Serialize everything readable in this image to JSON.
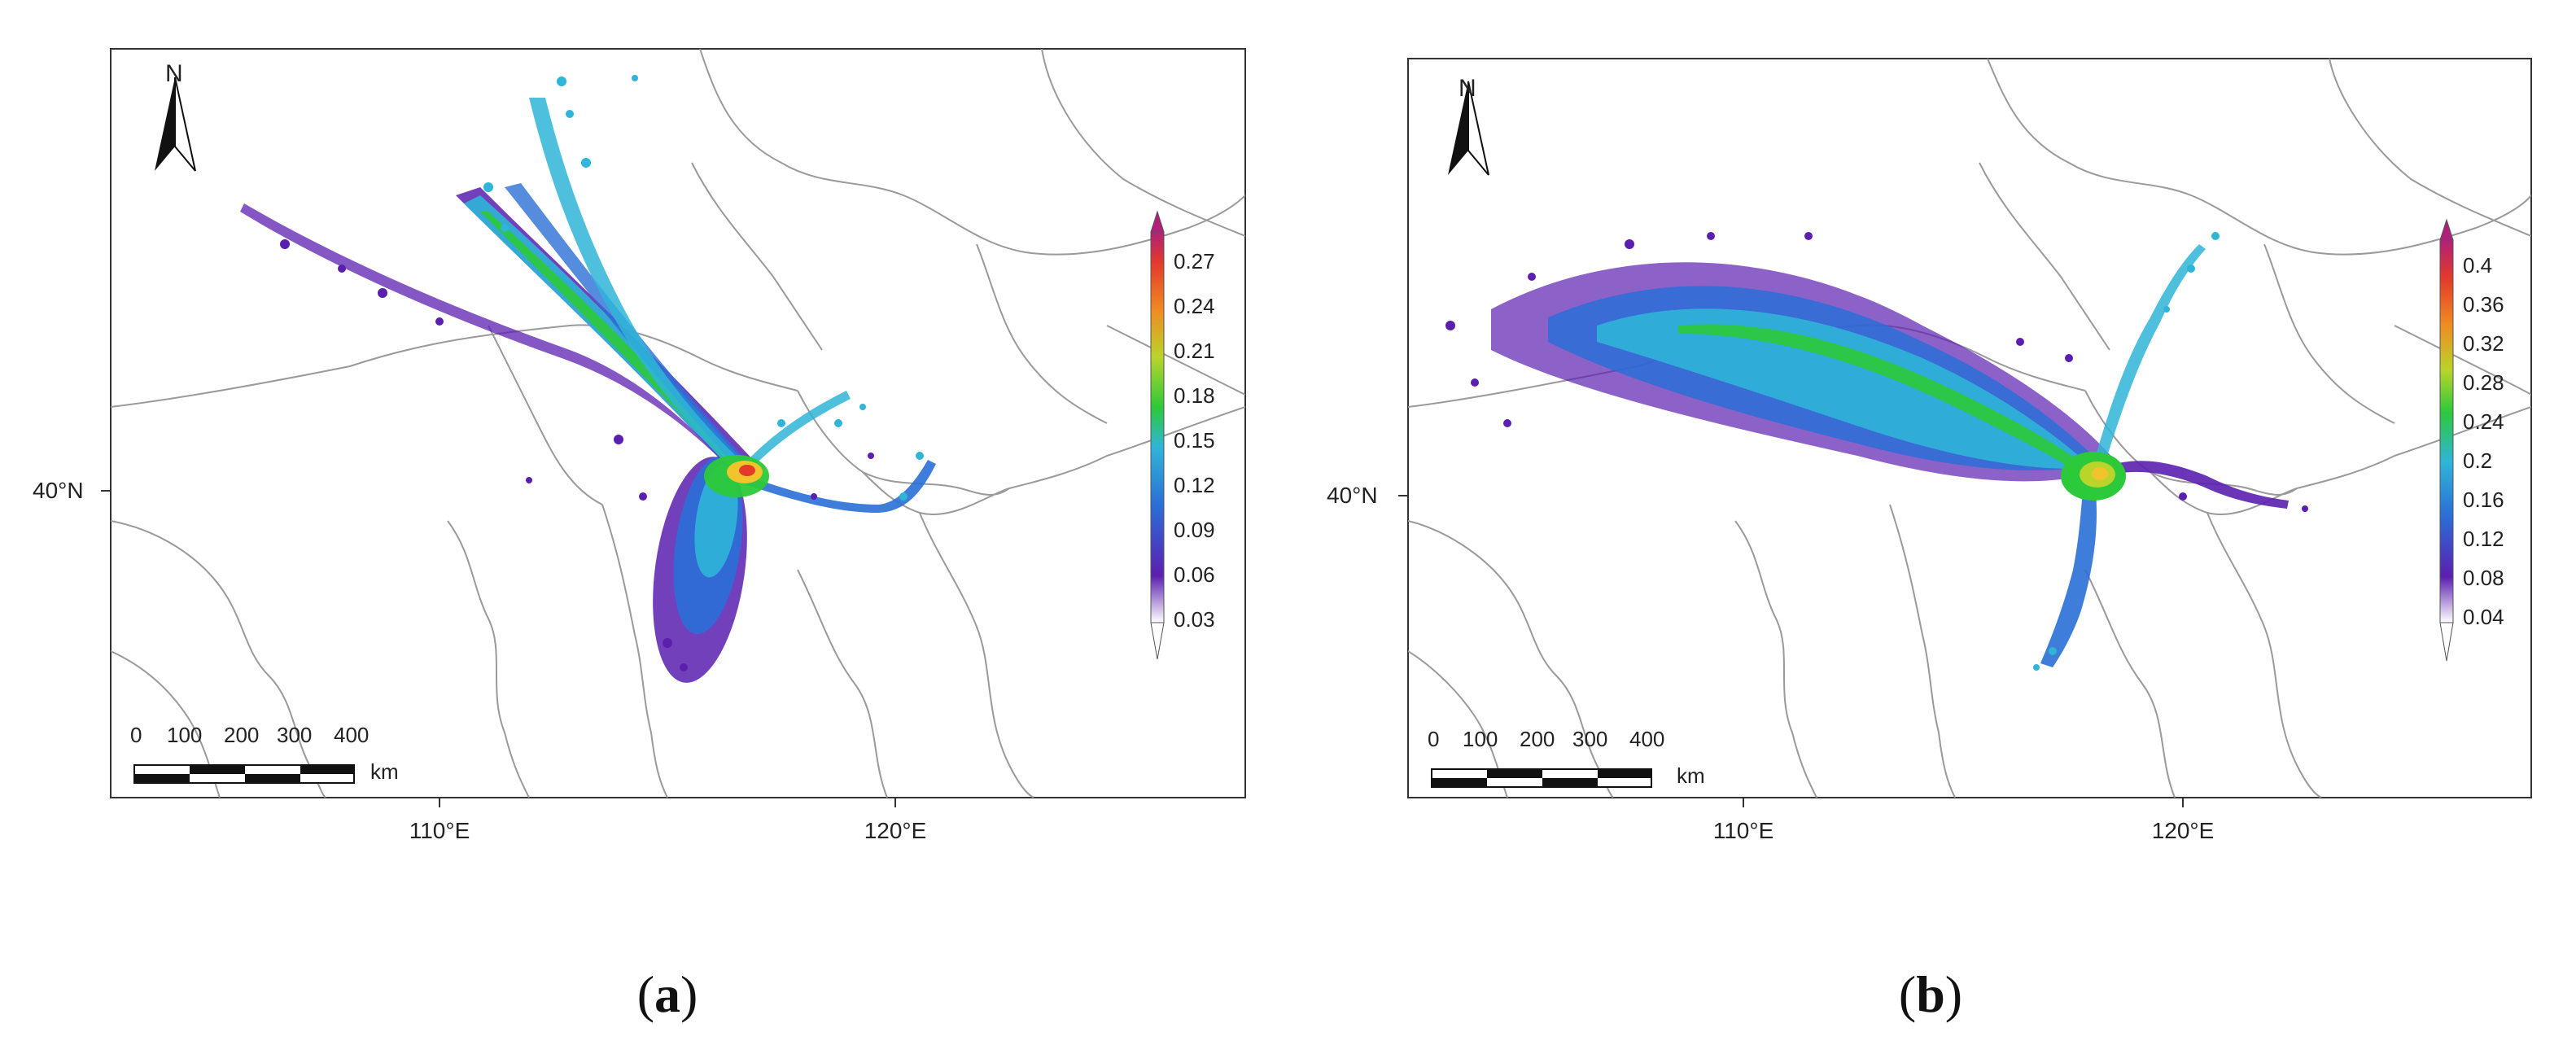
{
  "panels": [
    {
      "id": "a",
      "caption_letter": "a",
      "north_label": "N",
      "lat_label": "40°N",
      "lon_labels": [
        "110°E",
        "120°E"
      ],
      "scale": {
        "ticks": [
          "0",
          "100",
          "200",
          "300",
          "400"
        ],
        "unit": "km"
      },
      "colorbar_ticks": [
        "0.27",
        "0.24",
        "0.21",
        "0.18",
        "0.15",
        "0.12",
        "0.09",
        "0.06",
        "0.03"
      ]
    },
    {
      "id": "b",
      "caption_letter": "b",
      "north_label": "N",
      "lat_label": "40°N",
      "lon_labels": [
        "110°E",
        "120°E"
      ],
      "scale": {
        "ticks": [
          "0",
          "100",
          "200",
          "300",
          "400"
        ],
        "unit": "km"
      },
      "colorbar_ticks": [
        "0.4",
        "0.36",
        "0.32",
        "0.28",
        "0.24",
        "0.2",
        "0.16",
        "0.12",
        "0.08",
        "0.04"
      ]
    }
  ],
  "colorscale": [
    "#ffffff",
    "#5b1fb0",
    "#2a6fd6",
    "#2fb5d8",
    "#23c9a8",
    "#2cc93a",
    "#b9d42a",
    "#f0c42a",
    "#f08a22",
    "#e43a2a",
    "#b0207a"
  ]
}
